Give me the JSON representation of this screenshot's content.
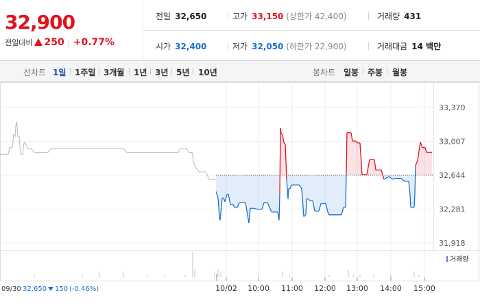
{
  "summary": {
    "price": "32,900",
    "change_label": "전일대비",
    "change": "250",
    "change_pct": "+0.77%"
  },
  "stats": {
    "prev_close_label": "전일",
    "prev_close": "32,650",
    "high_label": "고가",
    "high": "33,150",
    "upper_limit": "(상한가 42,400)",
    "volume_label": "거래량",
    "volume": "431",
    "open_label": "시가",
    "open": "32,400",
    "low_label": "저가",
    "low": "32,050",
    "lower_limit": "(하한가 22,900)",
    "amount_label": "거래대금",
    "amount": "14 백만"
  },
  "tabs": {
    "line_label": "선차트",
    "line_items": [
      "1일",
      "1주일",
      "3개월",
      "1년",
      "3년",
      "5년",
      "10년"
    ],
    "selected": "1일",
    "candle_label": "봉차트",
    "candle_items": [
      "일봉",
      "주봉",
      "월봉"
    ]
  },
  "colors": {
    "up": "#e0121e",
    "down": "#1a6fd0",
    "accent_selected": "#1a4fa8"
  },
  "chart_data": {
    "type": "line",
    "y_ticks": [
      "33,370",
      "33,007",
      "32,644",
      "32,281",
      "31,918"
    ],
    "ylim": [
      31918,
      33370
    ],
    "reference_value": 32644,
    "x_ticks": [
      "10/02",
      "10:00",
      "11:00",
      "12:00",
      "13:00",
      "14:00",
      "15:00"
    ],
    "volume_label": "거래량",
    "prev_day_note": {
      "date": "09/30",
      "price": "32,650",
      "change": "150",
      "change_pct": "(-0.46%)"
    },
    "grid": true,
    "prev_day_series": {
      "name": "",
      "points": [
        [
          0,
          32870
        ],
        [
          12,
          32870
        ],
        [
          14,
          32940
        ],
        [
          18,
          32940
        ],
        [
          20,
          33080
        ],
        [
          22,
          33060
        ],
        [
          23,
          33170
        ],
        [
          24,
          33220
        ],
        [
          25,
          33170
        ],
        [
          26,
          33060
        ],
        [
          28,
          33060
        ],
        [
          30,
          32870
        ],
        [
          33,
          32870
        ],
        [
          35,
          32990
        ],
        [
          37,
          32990
        ],
        [
          40,
          32930
        ],
        [
          45,
          32930
        ],
        [
          50,
          32890
        ],
        [
          70,
          32890
        ],
        [
          75,
          32930
        ],
        [
          180,
          32930
        ],
        [
          185,
          32890
        ],
        [
          260,
          32890
        ],
        [
          263,
          32930
        ],
        [
          272,
          32930
        ],
        [
          275,
          32890
        ],
        [
          280,
          32890
        ],
        [
          283,
          32760
        ],
        [
          286,
          32720
        ],
        [
          290,
          32680
        ],
        [
          300,
          32680
        ],
        [
          305,
          32600
        ],
        [
          315,
          32600
        ]
      ]
    },
    "today_series": {
      "name": "",
      "points": [
        [
          315,
          32470
        ],
        [
          318,
          32400
        ],
        [
          320,
          32200
        ],
        [
          321,
          32160
        ],
        [
          324,
          32400
        ],
        [
          326,
          32400
        ],
        [
          328,
          32360
        ],
        [
          331,
          32440
        ],
        [
          333,
          32440
        ],
        [
          336,
          32330
        ],
        [
          340,
          32330
        ],
        [
          342,
          32300
        ],
        [
          346,
          32300
        ],
        [
          349,
          32350
        ],
        [
          358,
          32350
        ],
        [
          361,
          32220
        ],
        [
          363,
          32130
        ],
        [
          365,
          32290
        ],
        [
          370,
          32290
        ],
        [
          375,
          32280
        ],
        [
          382,
          32280
        ],
        [
          385,
          32350
        ],
        [
          390,
          32350
        ],
        [
          396,
          32250
        ],
        [
          405,
          32250
        ],
        [
          407,
          32160
        ],
        [
          408,
          32450
        ],
        [
          409,
          33150
        ],
        [
          410,
          33090
        ],
        [
          412,
          33080
        ],
        [
          414,
          32990
        ],
        [
          416,
          32980
        ],
        [
          418,
          32600
        ],
        [
          420,
          32390
        ],
        [
          421,
          32500
        ],
        [
          423,
          32500
        ],
        [
          425,
          32540
        ],
        [
          436,
          32540
        ],
        [
          440,
          32500
        ],
        [
          443,
          32200
        ],
        [
          446,
          32220
        ],
        [
          447,
          32390
        ],
        [
          450,
          32390
        ],
        [
          452,
          32370
        ],
        [
          456,
          32370
        ],
        [
          459,
          32260
        ],
        [
          465,
          32260
        ],
        [
          468,
          32340
        ],
        [
          475,
          32340
        ],
        [
          478,
          32250
        ],
        [
          480,
          32220
        ],
        [
          498,
          32220
        ],
        [
          501,
          32300
        ],
        [
          504,
          32300
        ],
        [
          505,
          32660
        ],
        [
          506,
          33100
        ],
        [
          512,
          33100
        ],
        [
          514,
          33010
        ],
        [
          519,
          33010
        ],
        [
          521,
          32990
        ],
        [
          525,
          32990
        ],
        [
          528,
          32650
        ],
        [
          535,
          32650
        ],
        [
          539,
          32810
        ],
        [
          546,
          32810
        ],
        [
          548,
          32700
        ],
        [
          556,
          32700
        ],
        [
          560,
          32600
        ],
        [
          567,
          32630
        ],
        [
          573,
          32600
        ],
        [
          575,
          32610
        ],
        [
          585,
          32610
        ],
        [
          590,
          32580
        ],
        [
          596,
          32580
        ],
        [
          598,
          32440
        ],
        [
          599,
          32300
        ],
        [
          604,
          32300
        ],
        [
          605,
          32450
        ],
        [
          606,
          32750
        ],
        [
          609,
          32800
        ],
        [
          611,
          32900
        ],
        [
          613,
          33000
        ],
        [
          616,
          32940
        ],
        [
          620,
          32940
        ],
        [
          622,
          32890
        ],
        [
          630,
          32890
        ]
      ]
    },
    "volume_bars": [
      [
        50,
        1
      ],
      [
        120,
        1
      ],
      [
        145,
        2
      ],
      [
        180,
        2
      ],
      [
        215,
        1
      ],
      [
        240,
        1
      ],
      [
        270,
        1
      ],
      [
        281,
        10
      ],
      [
        284,
        3
      ],
      [
        313,
        2
      ],
      [
        318,
        3
      ],
      [
        322,
        2
      ],
      [
        412,
        2
      ],
      [
        422,
        1
      ],
      [
        480,
        1
      ],
      [
        508,
        3
      ],
      [
        515,
        1
      ],
      [
        525,
        1
      ],
      [
        545,
        1
      ],
      [
        570,
        1
      ],
      [
        604,
        2
      ],
      [
        611,
        1
      ]
    ]
  }
}
